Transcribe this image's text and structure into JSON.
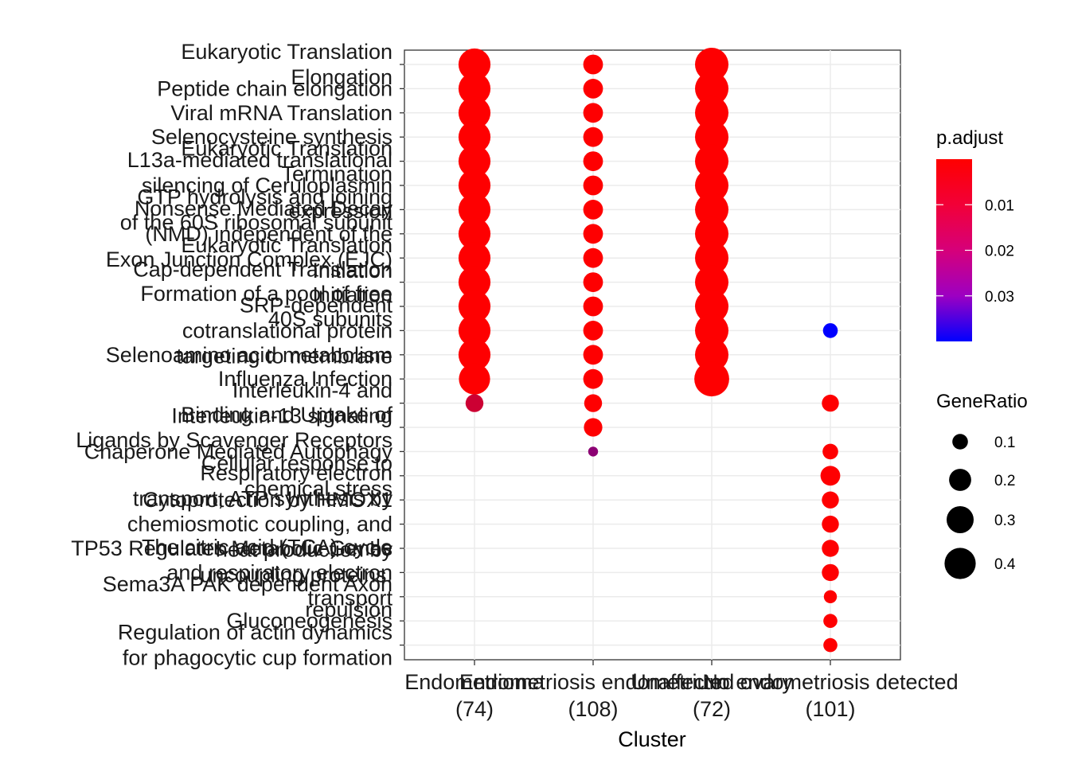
{
  "chart_data": {
    "type": "scatter",
    "xlabel": "Cluster",
    "ylabel": "",
    "categories_x": [
      [
        "Endometrioma",
        "(74)"
      ],
      [
        "Endometriosis endometrium",
        "(108)"
      ],
      [
        "Unaffected ovary",
        "(72)"
      ],
      [
        "No endometriosis detected",
        "(101)"
      ]
    ],
    "categories_y": [
      [
        "Eukaryotic Translation",
        "Elongation"
      ],
      [
        "Peptide chain elongation"
      ],
      [
        "Viral mRNA Translation"
      ],
      [
        "Selenocysteine synthesis"
      ],
      [
        "Eukaryotic Translation",
        "Termination"
      ],
      [
        "L13a-mediated translational",
        "silencing of Ceruloplasmin",
        "expression"
      ],
      [
        "GTP hydrolysis and joining",
        "of the 60S ribosomal subunit"
      ],
      [
        "Nonsense Mediated Decay",
        "(NMD) independent of the",
        "Exon Junction Complex (EJC)"
      ],
      [
        "Eukaryotic Translation",
        "Initiation"
      ],
      [
        "Cap-dependent Translation",
        "Initiation"
      ],
      [
        "Formation of a pool of free",
        "40S subunits"
      ],
      [
        "SRP-dependent",
        "cotranslational protein",
        "targeting to membrane"
      ],
      [
        "Selenoamino acid metabolism"
      ],
      [
        "Influenza Infection"
      ],
      [
        "Interleukin-4 and",
        "Interleukin-13 signaling"
      ],
      [
        "Binding and Uptake of",
        "Ligands by Scavenger Receptors"
      ],
      [
        "Chaperone Mediated Autophagy"
      ],
      [
        "Cellular response to",
        "chemical stress"
      ],
      [
        "Cytoprotection by HMOX1"
      ],
      [
        "Respiratory electron",
        "transport, ATP synthesis by",
        "chemiosmotic coupling, and",
        "heat production by",
        "uncoupling proteins."
      ],
      [
        "TP53 Regulates Metabolic Genes"
      ],
      [
        "The citric acid (TCA) cycle",
        "and respiratory electron",
        "transport"
      ],
      [
        "Sema3A PAK dependent Axon",
        "repulsion"
      ],
      [
        "Gluconeogenesis"
      ],
      [
        "Regulation of actin dynamics",
        "for phagocytic cup formation"
      ]
    ],
    "points": [
      {
        "x": 0,
        "y": 0,
        "gene_ratio": 0.42,
        "p_adjust": 0.0001
      },
      {
        "x": 0,
        "y": 1,
        "gene_ratio": 0.42,
        "p_adjust": 0.0001
      },
      {
        "x": 0,
        "y": 2,
        "gene_ratio": 0.42,
        "p_adjust": 0.0001
      },
      {
        "x": 0,
        "y": 3,
        "gene_ratio": 0.42,
        "p_adjust": 0.0001
      },
      {
        "x": 0,
        "y": 4,
        "gene_ratio": 0.42,
        "p_adjust": 0.0001
      },
      {
        "x": 0,
        "y": 5,
        "gene_ratio": 0.42,
        "p_adjust": 0.0001
      },
      {
        "x": 0,
        "y": 6,
        "gene_ratio": 0.42,
        "p_adjust": 0.0001
      },
      {
        "x": 0,
        "y": 7,
        "gene_ratio": 0.42,
        "p_adjust": 0.0001
      },
      {
        "x": 0,
        "y": 8,
        "gene_ratio": 0.42,
        "p_adjust": 0.0001
      },
      {
        "x": 0,
        "y": 9,
        "gene_ratio": 0.42,
        "p_adjust": 0.0001
      },
      {
        "x": 0,
        "y": 10,
        "gene_ratio": 0.42,
        "p_adjust": 0.0001
      },
      {
        "x": 0,
        "y": 11,
        "gene_ratio": 0.42,
        "p_adjust": 0.0001
      },
      {
        "x": 0,
        "y": 12,
        "gene_ratio": 0.42,
        "p_adjust": 0.0001
      },
      {
        "x": 0,
        "y": 13,
        "gene_ratio": 0.4,
        "p_adjust": 0.0001
      },
      {
        "x": 0,
        "y": 14,
        "gene_ratio": 0.13,
        "p_adjust": 0.008
      },
      {
        "x": 1,
        "y": 0,
        "gene_ratio": 0.16,
        "p_adjust": 0.0001
      },
      {
        "x": 1,
        "y": 1,
        "gene_ratio": 0.16,
        "p_adjust": 0.0001
      },
      {
        "x": 1,
        "y": 2,
        "gene_ratio": 0.16,
        "p_adjust": 0.0001
      },
      {
        "x": 1,
        "y": 3,
        "gene_ratio": 0.16,
        "p_adjust": 0.0001
      },
      {
        "x": 1,
        "y": 4,
        "gene_ratio": 0.16,
        "p_adjust": 0.0001
      },
      {
        "x": 1,
        "y": 5,
        "gene_ratio": 0.16,
        "p_adjust": 0.0001
      },
      {
        "x": 1,
        "y": 6,
        "gene_ratio": 0.16,
        "p_adjust": 0.0001
      },
      {
        "x": 1,
        "y": 7,
        "gene_ratio": 0.16,
        "p_adjust": 0.0001
      },
      {
        "x": 1,
        "y": 8,
        "gene_ratio": 0.16,
        "p_adjust": 0.0001
      },
      {
        "x": 1,
        "y": 9,
        "gene_ratio": 0.16,
        "p_adjust": 0.0001
      },
      {
        "x": 1,
        "y": 10,
        "gene_ratio": 0.16,
        "p_adjust": 0.0001
      },
      {
        "x": 1,
        "y": 11,
        "gene_ratio": 0.16,
        "p_adjust": 0.0001
      },
      {
        "x": 1,
        "y": 12,
        "gene_ratio": 0.16,
        "p_adjust": 0.0001
      },
      {
        "x": 1,
        "y": 13,
        "gene_ratio": 0.16,
        "p_adjust": 0.0001
      },
      {
        "x": 1,
        "y": 14,
        "gene_ratio": 0.13,
        "p_adjust": 0.0001
      },
      {
        "x": 1,
        "y": 15,
        "gene_ratio": 0.14,
        "p_adjust": 0.0001
      },
      {
        "x": 1,
        "y": 16,
        "gene_ratio": 0.04,
        "p_adjust": 0.018
      },
      {
        "x": 2,
        "y": 0,
        "gene_ratio": 0.46,
        "p_adjust": 0.0001
      },
      {
        "x": 2,
        "y": 1,
        "gene_ratio": 0.46,
        "p_adjust": 0.0001
      },
      {
        "x": 2,
        "y": 2,
        "gene_ratio": 0.46,
        "p_adjust": 0.0001
      },
      {
        "x": 2,
        "y": 3,
        "gene_ratio": 0.46,
        "p_adjust": 0.0001
      },
      {
        "x": 2,
        "y": 4,
        "gene_ratio": 0.46,
        "p_adjust": 0.0001
      },
      {
        "x": 2,
        "y": 5,
        "gene_ratio": 0.46,
        "p_adjust": 0.0001
      },
      {
        "x": 2,
        "y": 6,
        "gene_ratio": 0.46,
        "p_adjust": 0.0001
      },
      {
        "x": 2,
        "y": 7,
        "gene_ratio": 0.46,
        "p_adjust": 0.0001
      },
      {
        "x": 2,
        "y": 8,
        "gene_ratio": 0.46,
        "p_adjust": 0.0001
      },
      {
        "x": 2,
        "y": 9,
        "gene_ratio": 0.46,
        "p_adjust": 0.0001
      },
      {
        "x": 2,
        "y": 10,
        "gene_ratio": 0.46,
        "p_adjust": 0.0001
      },
      {
        "x": 2,
        "y": 11,
        "gene_ratio": 0.46,
        "p_adjust": 0.0001
      },
      {
        "x": 2,
        "y": 12,
        "gene_ratio": 0.46,
        "p_adjust": 0.0001
      },
      {
        "x": 2,
        "y": 13,
        "gene_ratio": 0.5,
        "p_adjust": 0.0001
      },
      {
        "x": 3,
        "y": 11,
        "gene_ratio": 0.09,
        "p_adjust": 0.04
      },
      {
        "x": 3,
        "y": 14,
        "gene_ratio": 0.12,
        "p_adjust": 0.0001
      },
      {
        "x": 3,
        "y": 16,
        "gene_ratio": 0.1,
        "p_adjust": 0.0001
      },
      {
        "x": 3,
        "y": 17,
        "gene_ratio": 0.16,
        "p_adjust": 0.0001
      },
      {
        "x": 3,
        "y": 18,
        "gene_ratio": 0.12,
        "p_adjust": 0.0001
      },
      {
        "x": 3,
        "y": 19,
        "gene_ratio": 0.12,
        "p_adjust": 0.0001
      },
      {
        "x": 3,
        "y": 20,
        "gene_ratio": 0.12,
        "p_adjust": 0.0001
      },
      {
        "x": 3,
        "y": 21,
        "gene_ratio": 0.12,
        "p_adjust": 0.0001
      },
      {
        "x": 3,
        "y": 22,
        "gene_ratio": 0.07,
        "p_adjust": 0.0001
      },
      {
        "x": 3,
        "y": 23,
        "gene_ratio": 0.08,
        "p_adjust": 0.0001
      },
      {
        "x": 3,
        "y": 24,
        "gene_ratio": 0.08,
        "p_adjust": 0.0001
      }
    ],
    "color_legend": {
      "title": "p.adjust",
      "ticks": [
        {
          "value": 0.01,
          "label": "0.01"
        },
        {
          "value": 0.02,
          "label": "0.02"
        },
        {
          "value": 0.03,
          "label": "0.03"
        }
      ],
      "range": [
        0.0,
        0.04
      ],
      "colors": {
        "low": "#ff0000",
        "high": "#0000ff"
      }
    },
    "size_legend": {
      "title": "GeneRatio",
      "ticks": [
        {
          "value": 0.1,
          "label": "0.1"
        },
        {
          "value": 0.2,
          "label": "0.2"
        },
        {
          "value": 0.3,
          "label": "0.3"
        },
        {
          "value": 0.4,
          "label": "0.4"
        }
      ]
    },
    "grid": true,
    "legend_position": "right"
  }
}
